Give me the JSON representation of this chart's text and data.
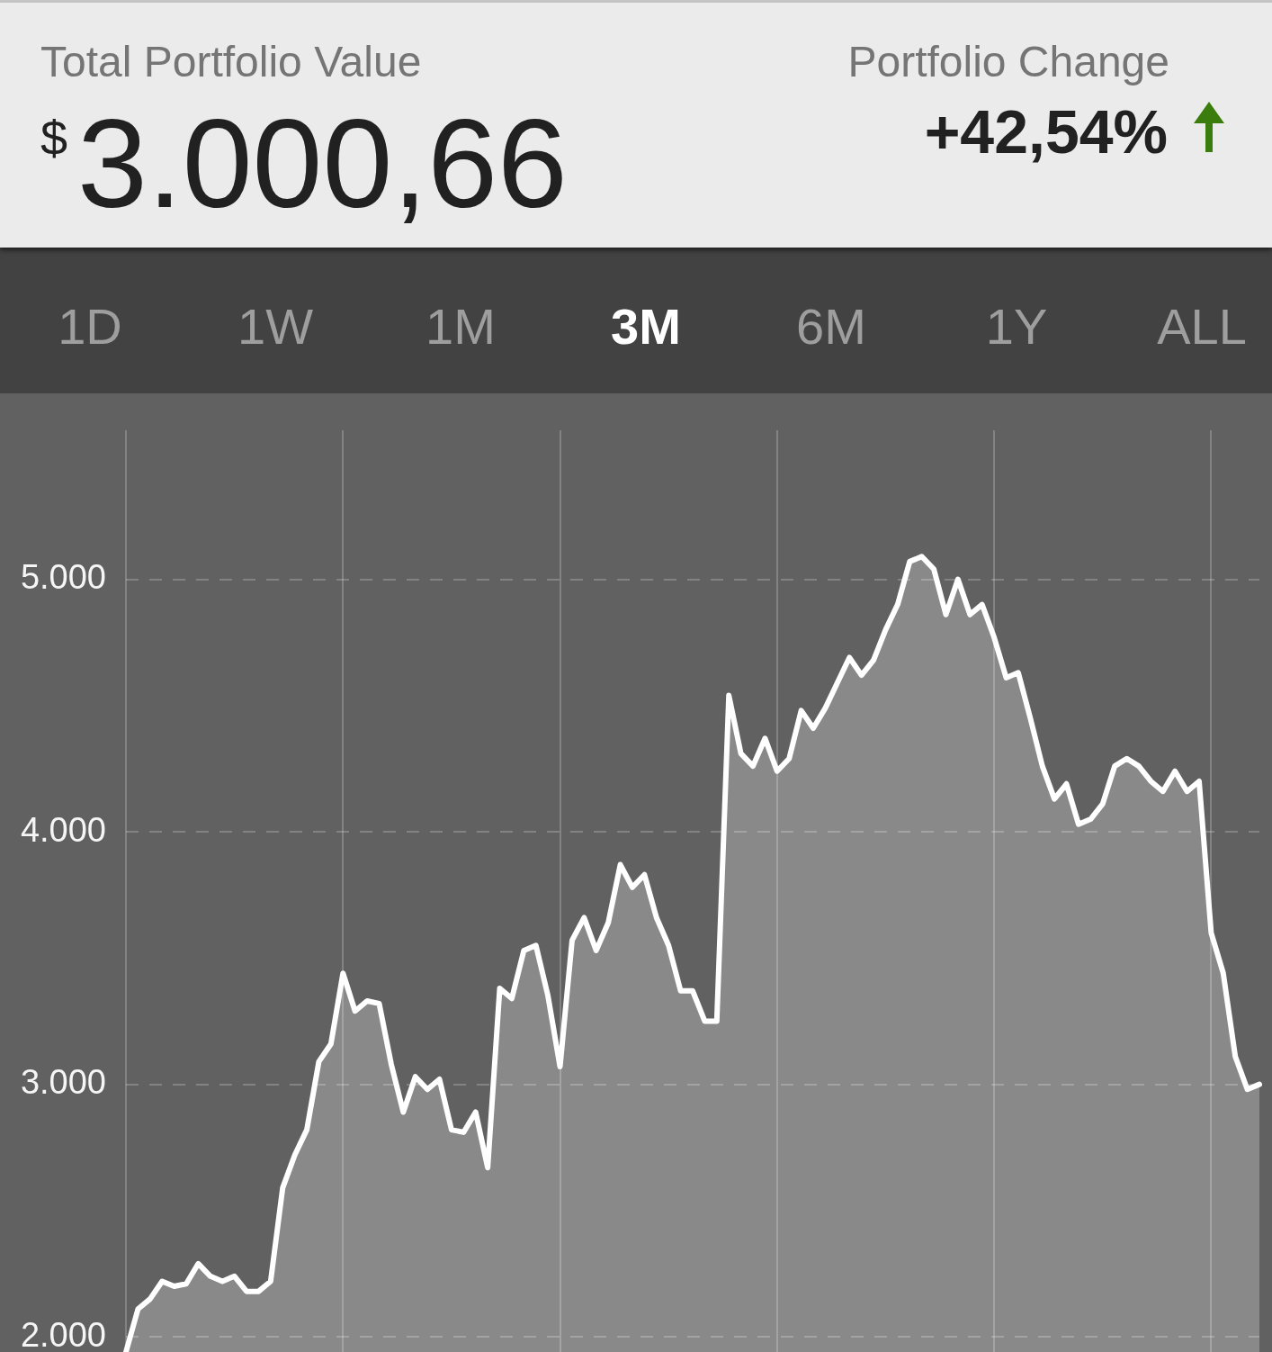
{
  "chart_data": {
    "type": "area",
    "title": "Total Portfolio Value",
    "annotations": [
      "$3.000,66",
      "Portfolio Change",
      "+42,54%",
      "1D",
      "1W",
      "1M",
      "3M",
      "6M",
      "1Y",
      "ALL"
    ],
    "categories": [
      null,
      null,
      null,
      null,
      null,
      null,
      null,
      null,
      null,
      null,
      null,
      null,
      null,
      null,
      null,
      null,
      null,
      null,
      null,
      null,
      null,
      null,
      null,
      null,
      null,
      null,
      null,
      null,
      null,
      null,
      null,
      null,
      null,
      null,
      null,
      null,
      null,
      null,
      null,
      null,
      null,
      null,
      null,
      null,
      null,
      null,
      null,
      null,
      null,
      null,
      null,
      null,
      null,
      null,
      null,
      null,
      null,
      null,
      null,
      null,
      null,
      null,
      null,
      null,
      null,
      null,
      null,
      null,
      null,
      null,
      null,
      null,
      null,
      null,
      null,
      null,
      null,
      null,
      null,
      null,
      null,
      null,
      null,
      null,
      null,
      null,
      null,
      null,
      null,
      null,
      null,
      null,
      null,
      null,
      null
    ],
    "values": [
      1940,
      2110,
      2150,
      2220,
      2200,
      2210,
      2290,
      2240,
      2220,
      2240,
      2180,
      2180,
      2220,
      2590,
      2720,
      2820,
      3090,
      3160,
      3440,
      3290,
      3330,
      3320,
      3080,
      2890,
      3030,
      2980,
      3020,
      2820,
      2810,
      2890,
      2670,
      3380,
      3340,
      3530,
      3550,
      3350,
      3070,
      3570,
      3660,
      3530,
      3640,
      3870,
      3780,
      3830,
      3660,
      3550,
      3370,
      3370,
      3250,
      3250,
      4540,
      4310,
      4260,
      4370,
      4240,
      4290,
      4480,
      4410,
      4490,
      4590,
      4690,
      4620,
      4680,
      4800,
      4900,
      5070,
      5090,
      5040,
      4860,
      5000,
      4860,
      4900,
      4770,
      4610,
      4630,
      4450,
      4260,
      4130,
      4190,
      4030,
      4050,
      4110,
      4260,
      4290,
      4260,
      4200,
      4160,
      4240,
      4160,
      4200,
      3600,
      3440,
      3110,
      2980,
      3000
    ],
    "color": "#ffffff",
    "ylim": [
      1940,
      5590
    ],
    "yticks": [
      {
        "value": 2000,
        "label": "2.000"
      },
      {
        "value": 3000,
        "label": "3.000"
      },
      {
        "value": 4000,
        "label": "4.000"
      },
      {
        "value": 5000,
        "label": "5.000"
      }
    ],
    "grid": true,
    "legend": false,
    "tick_labels": "y"
  }
}
